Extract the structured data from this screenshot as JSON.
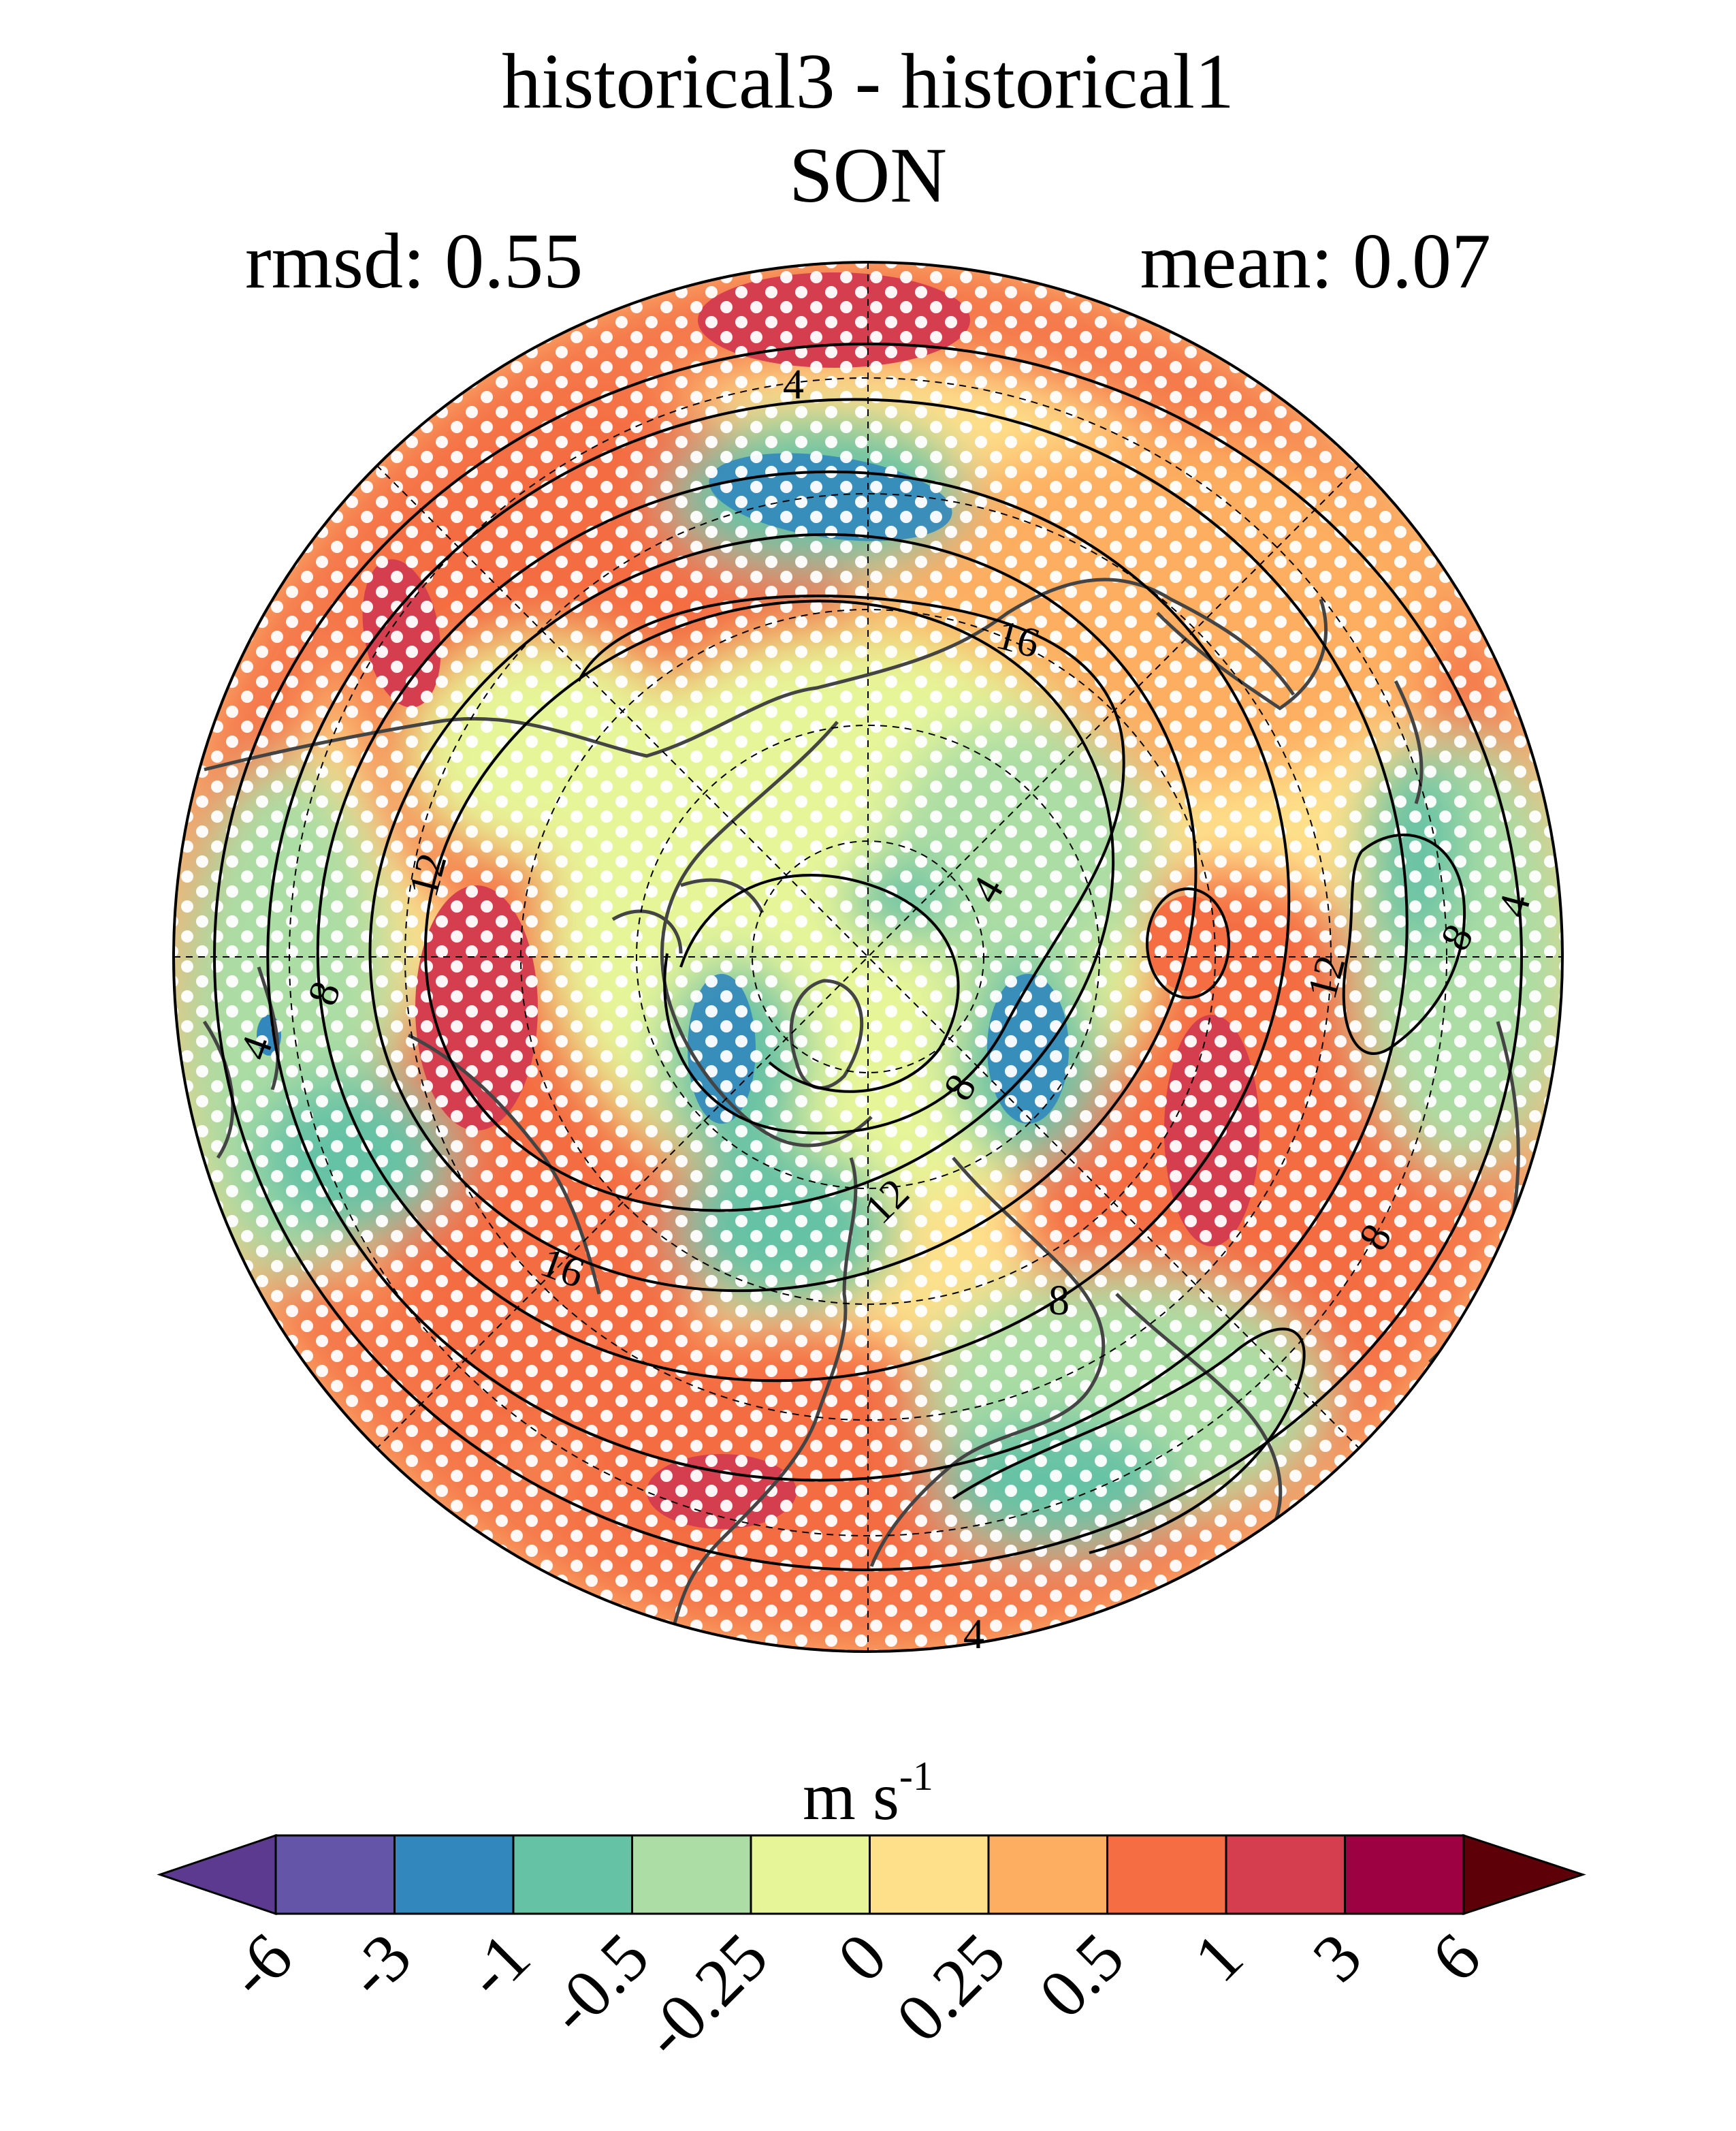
{
  "title": {
    "line1": "historical3 - historical1",
    "line2": "SON",
    "rmsd": "rmsd: 0.55",
    "mean": "mean: 0.07"
  },
  "map": {
    "projection": "north-polar-stereographic",
    "stippling": "white dots",
    "contour_labels": [
      "4",
      "16",
      "12",
      "8",
      "4",
      "8",
      "12",
      "8",
      "4",
      "16",
      "12",
      "8",
      "8",
      "4",
      "4"
    ]
  },
  "colorbar": {
    "units_base": "m s",
    "units_exp": "-1",
    "ticks": [
      "-6",
      "-3",
      "-1",
      "-0.5",
      "-0.25",
      "0",
      "0.25",
      "0.5",
      "1",
      "3",
      "6"
    ],
    "colors": [
      "#5c3a8f",
      "#6455a8",
      "#3288bd",
      "#66c2a5",
      "#abdda4",
      "#e6f598",
      "#fee08b",
      "#fdae61",
      "#f46d43",
      "#d53e4f",
      "#9e0142",
      "#5e0008"
    ]
  }
}
